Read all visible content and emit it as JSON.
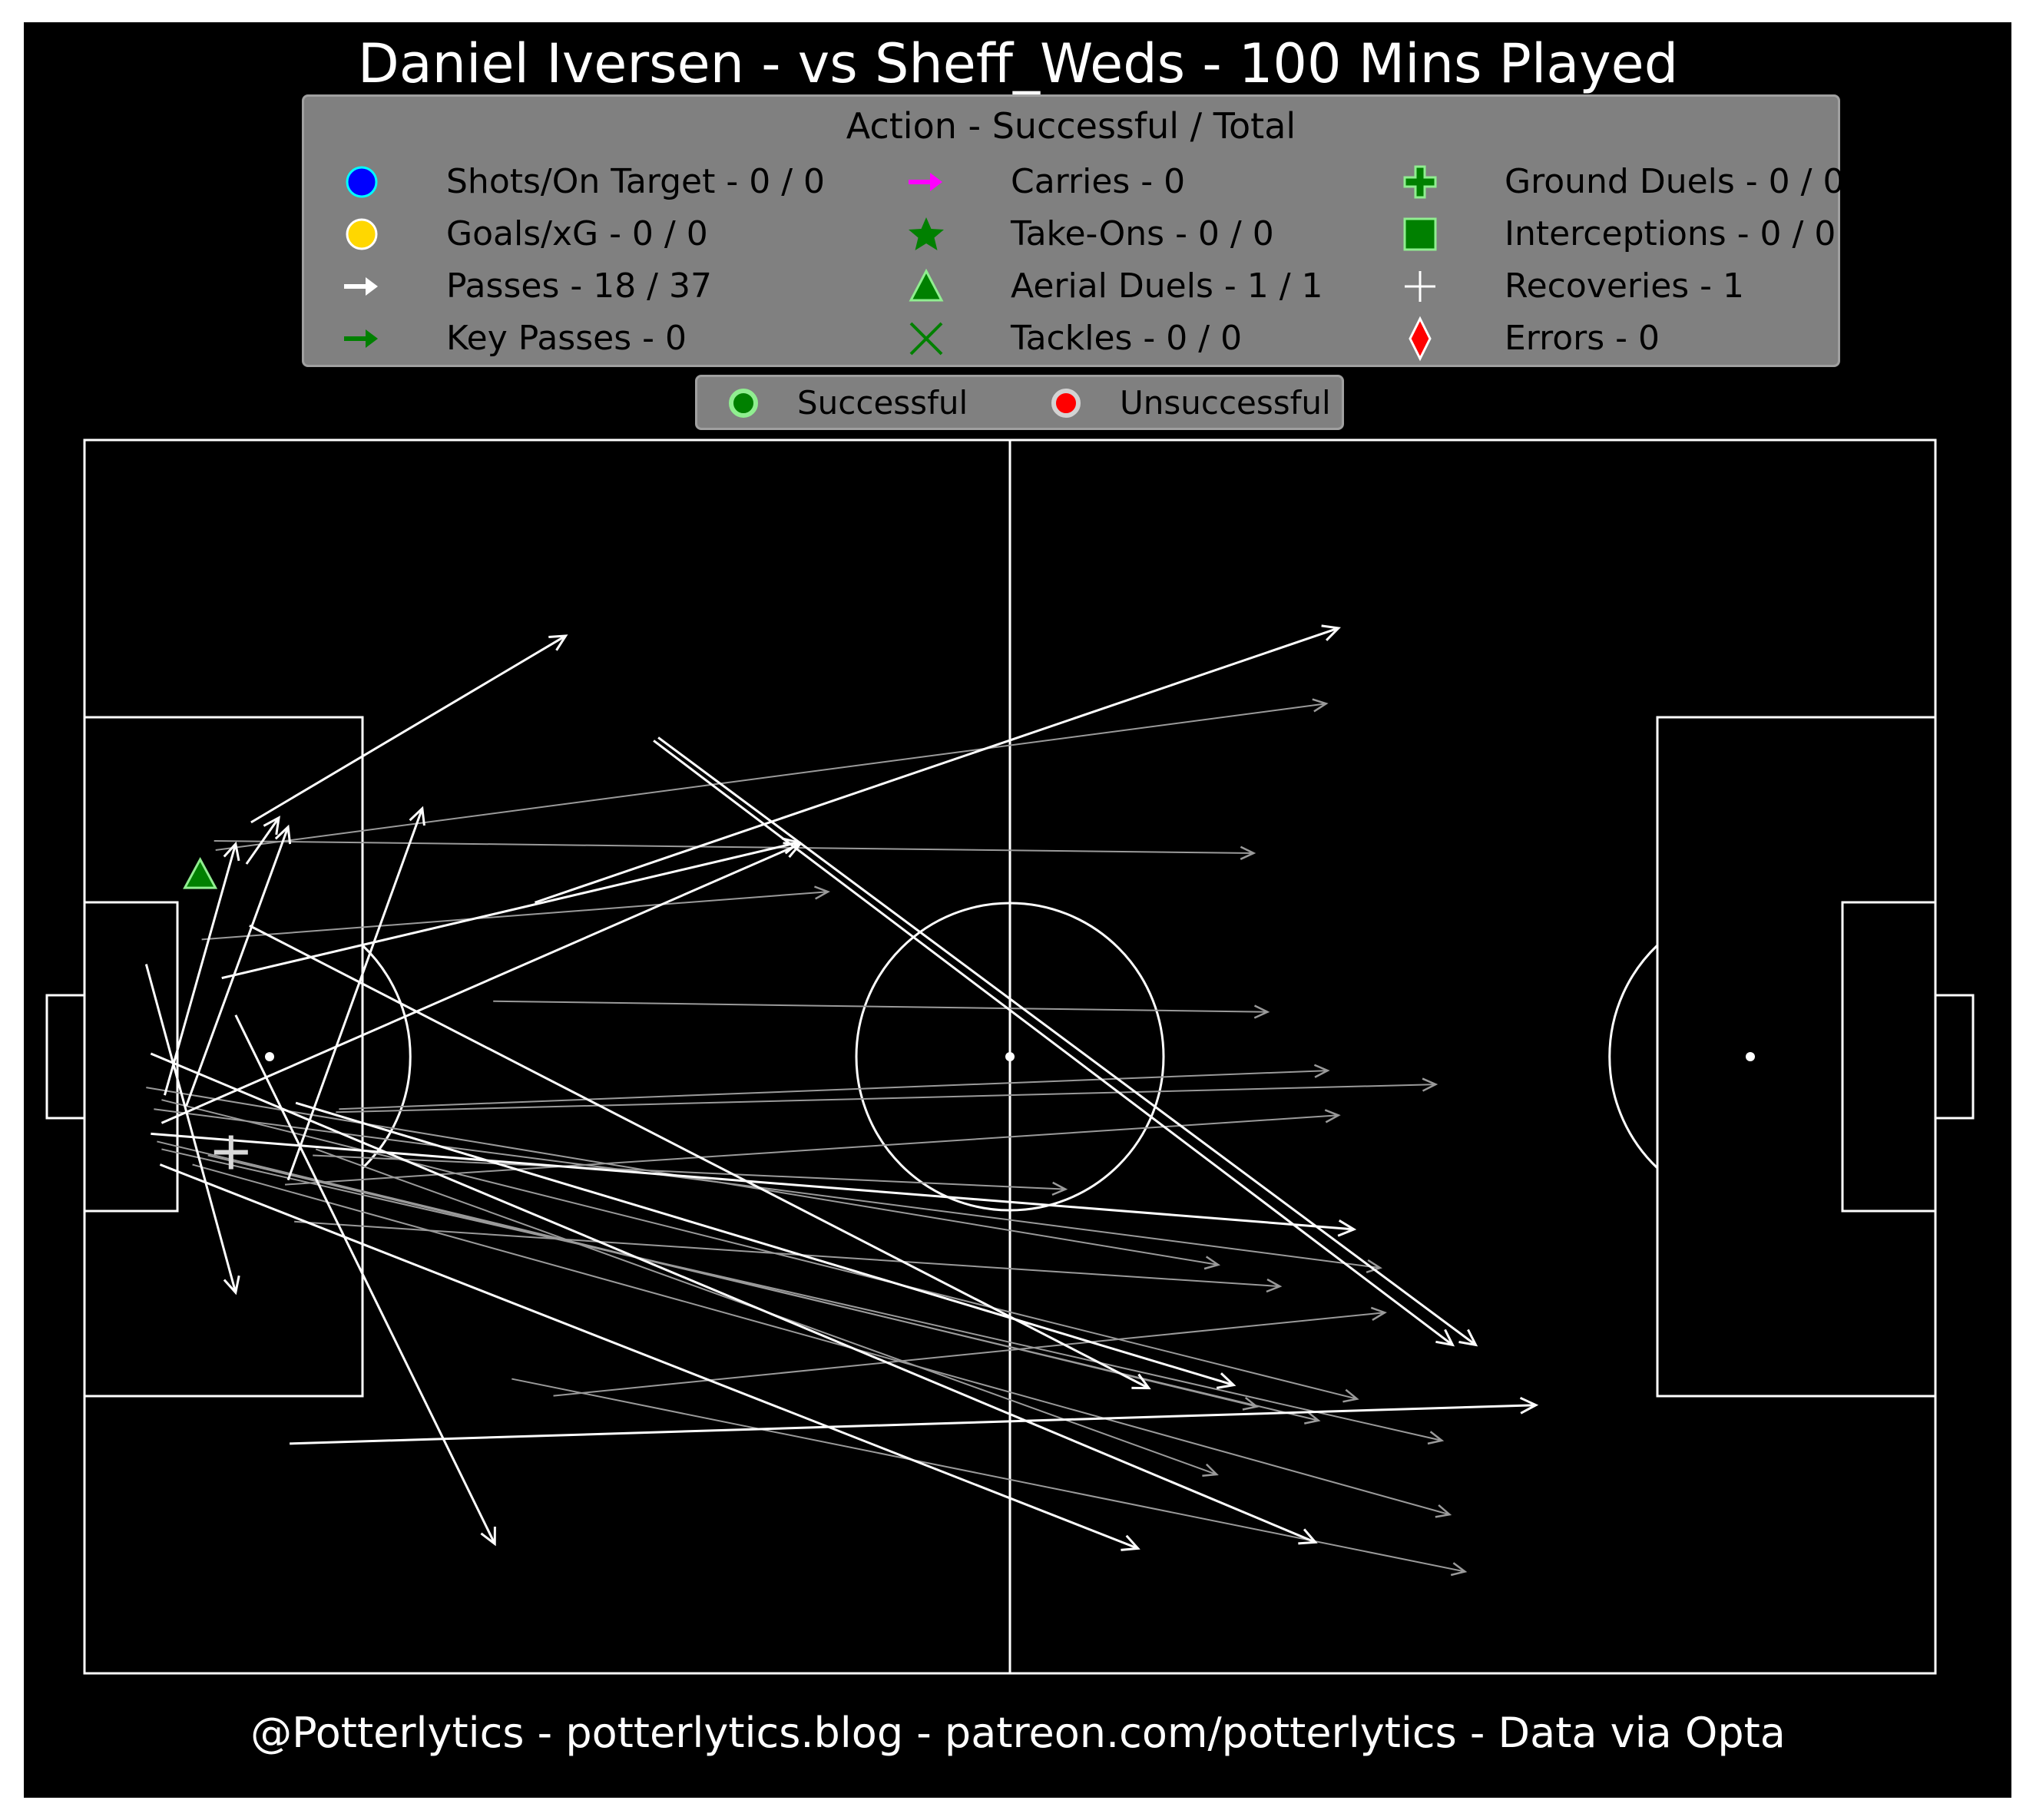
{
  "title": "Daniel Iversen - vs Sheff_Weds - 100 Mins Played",
  "footer": "@Potterlytics - potterlytics.blog - patreon.com/potterlytics - Data via Opta",
  "legend": {
    "title": "Action - Successful / Total",
    "items": [
      {
        "label": "Shots/On Target - 0 / 0",
        "icon": "blue-circle-icon",
        "color": "#0000ff"
      },
      {
        "label": "Goals/xG - 0 / 0",
        "icon": "gold-circle-icon",
        "color": "#ffd700"
      },
      {
        "label": "Passes - 18 / 37",
        "icon": "white-arrow-icon",
        "color": "#ffffff"
      },
      {
        "label": "Key Passes - 0",
        "icon": "green-arrow-icon",
        "color": "#008000"
      },
      {
        "label": "Carries - 0",
        "icon": "magenta-arrow-icon",
        "color": "#ff00ff"
      },
      {
        "label": "Take-Ons - 0 / 0",
        "icon": "green-star-icon",
        "color": "#008000"
      },
      {
        "label": "Aerial Duels - 1 / 1",
        "icon": "green-triangle-icon",
        "color": "#008000"
      },
      {
        "label": "Tackles - 0 / 0",
        "icon": "green-x-icon",
        "color": "#008000"
      },
      {
        "label": "Ground Duels - 0 / 0",
        "icon": "green-plus-icon",
        "color": "#008000"
      },
      {
        "label": "Interceptions - 0 / 0",
        "icon": "green-square-icon",
        "color": "#008000"
      },
      {
        "label": "Recoveries - 1",
        "icon": "white-plus-icon",
        "color": "#ffffff"
      },
      {
        "label": "Errors - 0",
        "icon": "red-diamond-icon",
        "color": "#ff0000"
      }
    ]
  },
  "legend2": {
    "successful": "Successful",
    "unsuccessful": "Unsuccessful"
  },
  "chart_data": {
    "type": "scatter",
    "pitch_dimensions": [
      120,
      80
    ],
    "passes": [
      {
        "x1": 10.8,
        "y1": 24.8,
        "x2": 31.2,
        "y2": 12.7,
        "successful": true
      },
      {
        "x1": 8.9,
        "y1": 34.9,
        "x2": 46.3,
        "y2": 26.1,
        "successful": true
      },
      {
        "x1": 5.2,
        "y1": 42.5,
        "x2": 9.8,
        "y2": 26.2,
        "successful": true
      },
      {
        "x1": 6.6,
        "y1": 43.2,
        "x2": 13.2,
        "y2": 25.1,
        "successful": true
      },
      {
        "x1": 13.2,
        "y1": 48.0,
        "x2": 21.9,
        "y2": 23.9,
        "successful": true
      },
      {
        "x1": 10.5,
        "y1": 27.5,
        "x2": 12.6,
        "y2": 24.5,
        "successful": true
      },
      {
        "x1": 29.2,
        "y1": 30.0,
        "x2": 81.3,
        "y2": 12.2,
        "successful": true
      },
      {
        "x1": 5.0,
        "y1": 44.3,
        "x2": 46.4,
        "y2": 26.2,
        "successful": true
      },
      {
        "x1": 4.0,
        "y1": 34.0,
        "x2": 9.8,
        "y2": 55.3,
        "successful": true
      },
      {
        "x1": 9.8,
        "y1": 37.3,
        "x2": 26.6,
        "y2": 71.6,
        "successful": true
      },
      {
        "x1": 36.9,
        "y1": 19.5,
        "x2": 88.7,
        "y2": 58.7,
        "successful": true
      },
      {
        "x1": 37.2,
        "y1": 19.3,
        "x2": 90.2,
        "y2": 58.7,
        "successful": true
      },
      {
        "x1": 10.7,
        "y1": 31.5,
        "x2": 69.0,
        "y2": 61.5,
        "successful": true
      },
      {
        "x1": 4.3,
        "y1": 45.0,
        "x2": 82.3,
        "y2": 51.2,
        "successful": true
      },
      {
        "x1": 4.3,
        "y1": 39.8,
        "x2": 79.8,
        "y2": 71.5,
        "successful": true
      },
      {
        "x1": 13.7,
        "y1": 43.0,
        "x2": 74.5,
        "y2": 61.3,
        "successful": true
      },
      {
        "x1": 4.9,
        "y1": 47.0,
        "x2": 68.3,
        "y2": 71.9,
        "successful": true
      },
      {
        "x1": 13.3,
        "y1": 65.1,
        "x2": 94.1,
        "y2": 62.6,
        "successful": true
      },
      {
        "x1": 8.5,
        "y1": 26.6,
        "x2": 80.5,
        "y2": 17.1,
        "successful": false
      },
      {
        "x1": 8.4,
        "y1": 26.0,
        "x2": 75.8,
        "y2": 26.8,
        "successful": false
      },
      {
        "x1": 7.6,
        "y1": 32.4,
        "x2": 48.2,
        "y2": 29.3,
        "successful": false
      },
      {
        "x1": 26.5,
        "y1": 36.4,
        "x2": 76.7,
        "y2": 37.1,
        "successful": false
      },
      {
        "x1": 16.5,
        "y1": 43.4,
        "x2": 80.6,
        "y2": 40.9,
        "successful": false
      },
      {
        "x1": 13.0,
        "y1": 48.3,
        "x2": 81.3,
        "y2": 43.8,
        "successful": false
      },
      {
        "x1": 16.3,
        "y1": 43.6,
        "x2": 87.6,
        "y2": 41.8,
        "successful": false
      },
      {
        "x1": 14.8,
        "y1": 46.4,
        "x2": 63.6,
        "y2": 48.6,
        "successful": false
      },
      {
        "x1": 4.0,
        "y1": 42.0,
        "x2": 73.5,
        "y2": 53.5,
        "successful": false
      },
      {
        "x1": 4.5,
        "y1": 43.4,
        "x2": 84.0,
        "y2": 53.7,
        "successful": false
      },
      {
        "x1": 13.6,
        "y1": 50.7,
        "x2": 77.5,
        "y2": 54.9,
        "successful": false
      },
      {
        "x1": 5.0,
        "y1": 42.8,
        "x2": 82.5,
        "y2": 62.2,
        "successful": false
      },
      {
        "x1": 4.7,
        "y1": 45.5,
        "x2": 76.0,
        "y2": 62.7,
        "successful": false
      },
      {
        "x1": 5.0,
        "y1": 46.0,
        "x2": 88.0,
        "y2": 64.9,
        "successful": false
      },
      {
        "x1": 7.0,
        "y1": 47.0,
        "x2": 88.5,
        "y2": 69.7,
        "successful": false
      },
      {
        "x1": 15.0,
        "y1": 46.0,
        "x2": 73.4,
        "y2": 67.1,
        "successful": false
      },
      {
        "x1": 30.4,
        "y1": 62.0,
        "x2": 84.3,
        "y2": 56.6,
        "successful": false
      },
      {
        "x1": 27.7,
        "y1": 60.9,
        "x2": 89.5,
        "y2": 73.4,
        "successful": false
      },
      {
        "x1": 8.0,
        "y1": 46.4,
        "x2": 80.0,
        "y2": 63.6,
        "successful": false
      }
    ],
    "aerial_duels": [
      {
        "x": 7.5,
        "y": 28.2,
        "successful": true
      }
    ],
    "recoveries": [
      {
        "x": 9.5,
        "y": 46.2
      }
    ]
  }
}
